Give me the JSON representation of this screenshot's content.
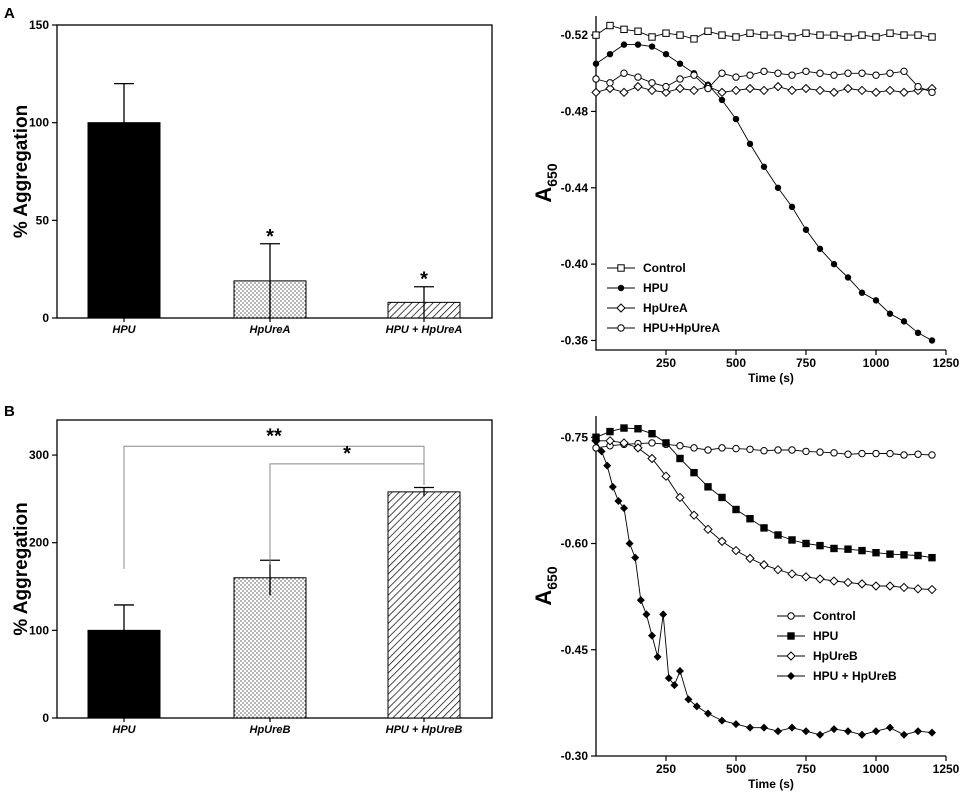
{
  "panels": {
    "A": "A",
    "B": "B"
  },
  "chart_data": [
    {
      "type": "bar",
      "id": "barA",
      "ylabel": "% Aggregation",
      "ylim": [
        0,
        150
      ],
      "yticks": [
        0,
        50,
        100,
        150
      ],
      "categories": [
        "HPU",
        "HpUreA",
        "HPU + HpUreA"
      ],
      "values": [
        100,
        19,
        8
      ],
      "errors": [
        20,
        19,
        8
      ],
      "fills": [
        "solid",
        "dots",
        "hatch"
      ],
      "significance": [
        "",
        "*",
        "*"
      ]
    },
    {
      "type": "line",
      "id": "lineA",
      "ylabel_main": "A",
      "ylabel_sub": "650",
      "xlabel": "Time (s)",
      "xlim": [
        0,
        1250
      ],
      "xticks": [
        250,
        500,
        750,
        1000,
        1250
      ],
      "ylim": [
        -0.53,
        -0.355
      ],
      "ytick_values": [
        -0.52,
        -0.48,
        -0.44,
        -0.4,
        -0.36
      ],
      "ytick_labels": [
        "-0.52",
        "-0.48",
        "-0.44",
        "-0.40",
        "-0.36"
      ],
      "legend_position": "bottom-left",
      "series": [
        {
          "name": "Control",
          "marker": "open-square",
          "x": [
            0,
            50,
            100,
            150,
            200,
            250,
            300,
            350,
            400,
            450,
            500,
            550,
            600,
            650,
            700,
            750,
            800,
            850,
            900,
            950,
            1000,
            1050,
            1100,
            1150,
            1200
          ],
          "y": [
            -0.52,
            -0.525,
            -0.523,
            -0.522,
            -0.519,
            -0.521,
            -0.52,
            -0.518,
            -0.522,
            -0.52,
            -0.519,
            -0.521,
            -0.52,
            -0.52,
            -0.519,
            -0.521,
            -0.52,
            -0.52,
            -0.519,
            -0.52,
            -0.519,
            -0.521,
            -0.52,
            -0.52,
            -0.519
          ]
        },
        {
          "name": "HPU",
          "marker": "filled-circle",
          "x": [
            0,
            50,
            100,
            150,
            200,
            250,
            300,
            350,
            400,
            450,
            500,
            550,
            600,
            650,
            700,
            750,
            800,
            850,
            900,
            950,
            1000,
            1050,
            1100,
            1150,
            1200
          ],
          "y": [
            -0.505,
            -0.51,
            -0.515,
            -0.515,
            -0.514,
            -0.51,
            -0.505,
            -0.5,
            -0.494,
            -0.486,
            -0.476,
            -0.463,
            -0.451,
            -0.44,
            -0.43,
            -0.418,
            -0.408,
            -0.4,
            -0.393,
            -0.385,
            -0.381,
            -0.374,
            -0.37,
            -0.364,
            -0.36
          ]
        },
        {
          "name": "HpUreA",
          "marker": "open-diamond",
          "x": [
            0,
            50,
            100,
            150,
            200,
            250,
            300,
            350,
            400,
            450,
            500,
            550,
            600,
            650,
            700,
            750,
            800,
            850,
            900,
            950,
            1000,
            1050,
            1100,
            1150,
            1200
          ],
          "y": [
            -0.49,
            -0.492,
            -0.49,
            -0.493,
            -0.491,
            -0.49,
            -0.492,
            -0.491,
            -0.493,
            -0.49,
            -0.491,
            -0.492,
            -0.491,
            -0.493,
            -0.491,
            -0.492,
            -0.491,
            -0.49,
            -0.492,
            -0.491,
            -0.49,
            -0.491,
            -0.49,
            -0.491,
            -0.492
          ]
        },
        {
          "name": "HPU+HpUreA",
          "marker": "open-circle",
          "x": [
            0,
            50,
            100,
            150,
            200,
            250,
            300,
            350,
            400,
            450,
            500,
            550,
            600,
            650,
            700,
            750,
            800,
            850,
            900,
            950,
            1000,
            1050,
            1100,
            1150,
            1200
          ],
          "y": [
            -0.497,
            -0.495,
            -0.5,
            -0.498,
            -0.495,
            -0.493,
            -0.497,
            -0.499,
            -0.492,
            -0.5,
            -0.498,
            -0.499,
            -0.501,
            -0.5,
            -0.499,
            -0.501,
            -0.5,
            -0.499,
            -0.5,
            -0.5,
            -0.499,
            -0.5,
            -0.501,
            -0.493,
            -0.49
          ]
        }
      ]
    },
    {
      "type": "bar",
      "id": "barB",
      "ylabel": "% Aggregation",
      "ylim": [
        0,
        340
      ],
      "yticks": [
        0,
        100,
        200,
        300
      ],
      "categories": [
        "HPU",
        "HpUreB",
        "HPU + HpUreB"
      ],
      "values": [
        100,
        160,
        258
      ],
      "errors": [
        29,
        20,
        5
      ],
      "fills": [
        "solid",
        "dots",
        "hatch"
      ],
      "brackets": [
        {
          "from": 0,
          "to": 2,
          "y": 310,
          "label": "**"
        },
        {
          "from": 1,
          "to": 2,
          "y": 290,
          "label": "*"
        }
      ]
    },
    {
      "type": "line",
      "id": "lineB",
      "ylabel_main": "A",
      "ylabel_sub": "650",
      "xlabel": "Time (s)",
      "xlim": [
        0,
        1250
      ],
      "xticks": [
        250,
        500,
        750,
        1000,
        1250
      ],
      "ylim": [
        -0.78,
        -0.3
      ],
      "ytick_values": [
        -0.75,
        -0.6,
        -0.45,
        -0.3
      ],
      "ytick_labels": [
        "-0.75",
        "-0.60",
        "-0.45",
        "-0.30"
      ],
      "legend_position": "bottom-right",
      "series": [
        {
          "name": "Control",
          "marker": "open-circle",
          "x": [
            0,
            50,
            100,
            150,
            200,
            250,
            300,
            350,
            400,
            450,
            500,
            550,
            600,
            650,
            700,
            750,
            800,
            850,
            900,
            950,
            1000,
            1050,
            1100,
            1150,
            1200
          ],
          "y": [
            -0.735,
            -0.738,
            -0.74,
            -0.741,
            -0.742,
            -0.74,
            -0.738,
            -0.735,
            -0.732,
            -0.735,
            -0.734,
            -0.733,
            -0.731,
            -0.732,
            -0.732,
            -0.73,
            -0.729,
            -0.728,
            -0.726,
            -0.727,
            -0.727,
            -0.727,
            -0.725,
            -0.726,
            -0.725
          ]
        },
        {
          "name": "HPU",
          "marker": "filled-square",
          "x": [
            0,
            50,
            100,
            150,
            200,
            250,
            300,
            350,
            400,
            450,
            500,
            550,
            600,
            650,
            700,
            750,
            800,
            850,
            900,
            950,
            1000,
            1050,
            1100,
            1150,
            1200
          ],
          "y": [
            -0.75,
            -0.758,
            -0.763,
            -0.762,
            -0.755,
            -0.742,
            -0.72,
            -0.7,
            -0.68,
            -0.665,
            -0.648,
            -0.635,
            -0.622,
            -0.612,
            -0.605,
            -0.6,
            -0.597,
            -0.593,
            -0.592,
            -0.59,
            -0.587,
            -0.585,
            -0.584,
            -0.583,
            -0.58
          ]
        },
        {
          "name": "HpUreB",
          "marker": "open-diamond",
          "x": [
            0,
            50,
            100,
            150,
            200,
            250,
            300,
            350,
            400,
            450,
            500,
            550,
            600,
            650,
            700,
            750,
            800,
            850,
            900,
            950,
            1000,
            1050,
            1100,
            1150,
            1200
          ],
          "y": [
            -0.745,
            -0.745,
            -0.742,
            -0.735,
            -0.72,
            -0.695,
            -0.665,
            -0.64,
            -0.62,
            -0.603,
            -0.59,
            -0.579,
            -0.57,
            -0.563,
            -0.557,
            -0.553,
            -0.55,
            -0.547,
            -0.545,
            -0.543,
            -0.54,
            -0.54,
            -0.538,
            -0.536,
            -0.535
          ]
        },
        {
          "name": "HPU + HpUreB",
          "marker": "filled-diamond",
          "x": [
            0,
            20,
            40,
            60,
            80,
            100,
            120,
            140,
            160,
            180,
            200,
            220,
            240,
            260,
            280,
            300,
            330,
            360,
            400,
            450,
            500,
            550,
            600,
            650,
            700,
            750,
            800,
            850,
            900,
            950,
            1000,
            1050,
            1100,
            1150,
            1200
          ],
          "y": [
            -0.745,
            -0.73,
            -0.71,
            -0.68,
            -0.66,
            -0.65,
            -0.6,
            -0.58,
            -0.52,
            -0.5,
            -0.47,
            -0.44,
            -0.5,
            -0.41,
            -0.4,
            -0.42,
            -0.38,
            -0.37,
            -0.36,
            -0.35,
            -0.345,
            -0.34,
            -0.34,
            -0.335,
            -0.34,
            -0.335,
            -0.33,
            -0.338,
            -0.335,
            -0.33,
            -0.335,
            -0.34,
            -0.33,
            -0.335,
            -0.333
          ]
        }
      ]
    }
  ]
}
